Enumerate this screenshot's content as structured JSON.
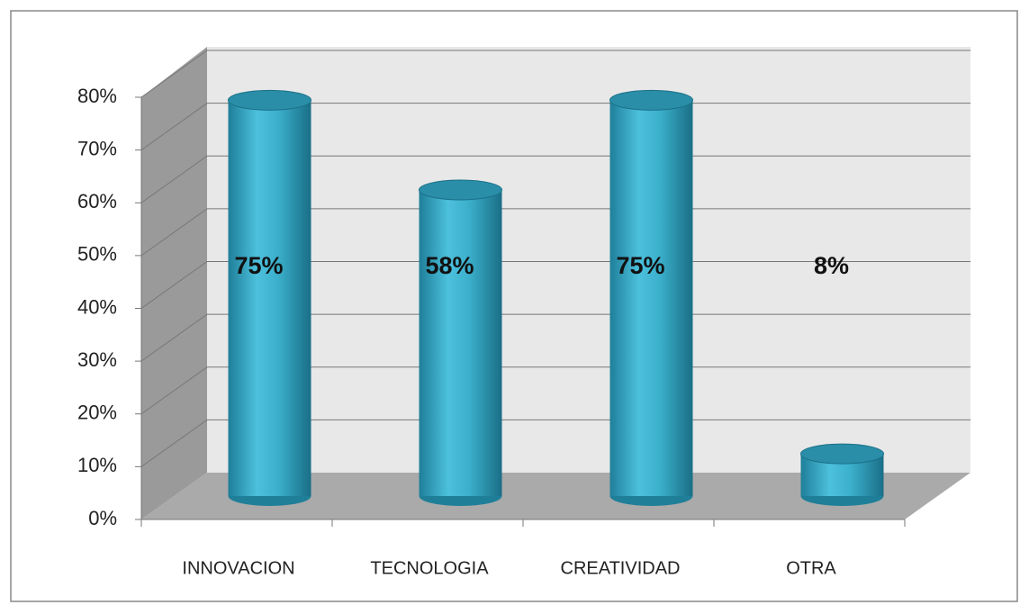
{
  "chart_data": {
    "type": "bar3d",
    "categories": [
      "INNOVACION",
      "TECNOLOGIA",
      "CREATIVIDAD",
      "OTRA"
    ],
    "values": [
      75,
      58,
      75,
      8
    ],
    "value_labels": [
      "75%",
      "58%",
      "75%",
      "8%"
    ],
    "color": "#3aaecb",
    "ylim": [
      0,
      80
    ],
    "yticks": [
      {
        "value": 0,
        "label": "0%"
      },
      {
        "value": 10,
        "label": "10%"
      },
      {
        "value": 20,
        "label": "20%"
      },
      {
        "value": 30,
        "label": "30%"
      },
      {
        "value": 40,
        "label": "40%"
      },
      {
        "value": 50,
        "label": "50%"
      },
      {
        "value": 60,
        "label": "60%"
      },
      {
        "value": 70,
        "label": "70%"
      },
      {
        "value": 80,
        "label": "80%"
      }
    ],
    "grid": true
  }
}
